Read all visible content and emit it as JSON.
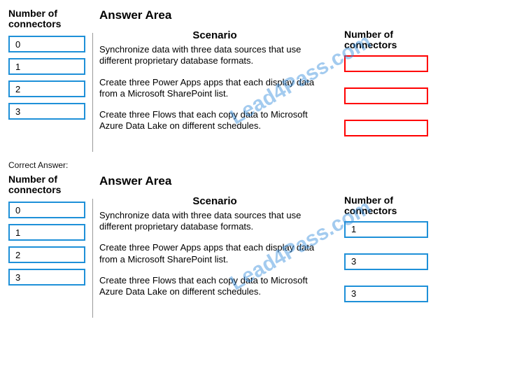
{
  "colors": {
    "choice_border": "#1e90d8",
    "drop_border": "#ff0000",
    "watermark": "rgba(50,140,220,0.45)",
    "background": "#ffffff"
  },
  "labels": {
    "choices_header": "Number of connectors",
    "answer_area_title": "Answer Area",
    "scenario_header": "Scenario",
    "dropzone_header": "Number of connectors",
    "correct_answer": "Correct Answer:"
  },
  "watermark_text": "Lead4Pass.com",
  "choices": [
    "0",
    "1",
    "2",
    "3"
  ],
  "scenarios": [
    "Synchronize data with three data sources that use different proprietary database formats.",
    "Create three Power Apps apps that each display data from a Microsoft SharePoint list.",
    "Create three Flows that each copy data to Microsoft Azure Data Lake on different schedules."
  ],
  "correct_values": [
    "1",
    "3",
    "3"
  ]
}
